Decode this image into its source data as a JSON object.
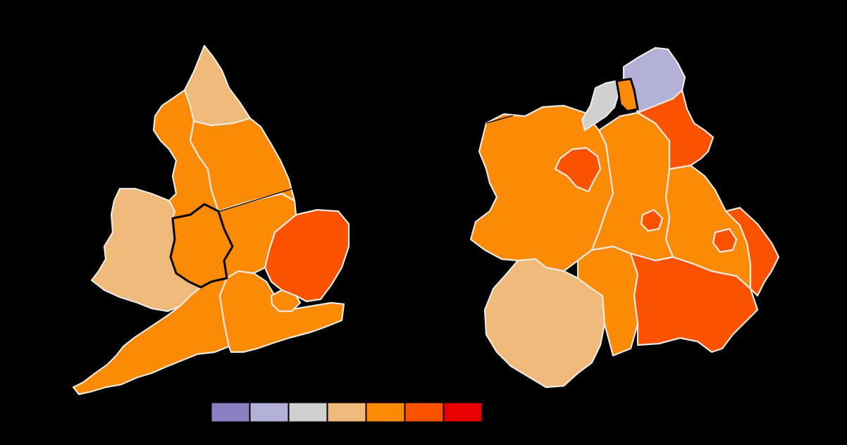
{
  "palette": {
    "background": "#000000",
    "border": "#eeeae2",
    "bin_1": "#8a7fc0",
    "bin_2": "#b4afd6",
    "bin_3": "#d0d0d0",
    "bin_4": "#efb97a",
    "bin_5": "#fb8a06",
    "bin_6": "#fb5200",
    "bin_7": "#e80000"
  },
  "legend": {
    "bins": [
      "bin_1",
      "bin_2",
      "bin_3",
      "bin_4",
      "bin_5",
      "bin_6",
      "bin_7"
    ]
  },
  "left_map": {
    "regions": [
      {
        "name": "north-east",
        "bin": "bin_4"
      },
      {
        "name": "north-west",
        "bin": "bin_5"
      },
      {
        "name": "yorkshire-and-the-humber",
        "bin": "bin_5"
      },
      {
        "name": "east-midlands",
        "bin": "bin_5"
      },
      {
        "name": "west-midlands",
        "bin": "bin_5"
      },
      {
        "name": "east-of-england",
        "bin": "bin_6"
      },
      {
        "name": "london",
        "bin": "bin_5"
      },
      {
        "name": "south-east",
        "bin": "bin_5"
      },
      {
        "name": "south-west",
        "bin": "bin_5"
      },
      {
        "name": "wales",
        "bin": "bin_4"
      }
    ],
    "highlighted_region": "west-midlands"
  },
  "right_map": {
    "regions": [
      {
        "name": "north-area",
        "bin": "bin_2"
      },
      {
        "name": "north-west-area",
        "bin": "bin_3"
      },
      {
        "name": "small-highlighted-area",
        "bin": "bin_5"
      },
      {
        "name": "north-east-strip",
        "bin": "bin_6"
      },
      {
        "name": "western-area",
        "bin": "bin_5"
      },
      {
        "name": "inner-north-enclave",
        "bin": "bin_6"
      },
      {
        "name": "central-cluster",
        "bin": "bin_5"
      },
      {
        "name": "central-small-area",
        "bin": "bin_6"
      },
      {
        "name": "eastern-area",
        "bin": "bin_5"
      },
      {
        "name": "east-coast-area",
        "bin": "bin_6"
      },
      {
        "name": "east-small-area",
        "bin": "bin_6"
      },
      {
        "name": "south-central-area",
        "bin": "bin_6"
      },
      {
        "name": "south-west-area",
        "bin": "bin_4"
      },
      {
        "name": "south-area",
        "bin": "bin_5"
      }
    ],
    "highlighted_region": "small-highlighted-area"
  }
}
